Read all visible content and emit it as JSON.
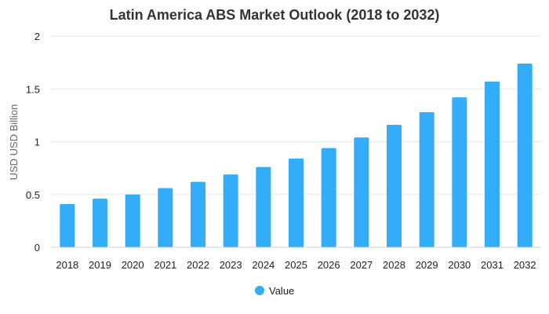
{
  "chart_data": {
    "type": "bar",
    "title": "Latin America ABS Market Outlook (2018 to 2032)",
    "xlabel": "",
    "ylabel": "USD USD Billion",
    "ylim": [
      0,
      2
    ],
    "yticks": [
      0,
      0.5,
      1,
      1.5,
      2
    ],
    "ytick_labels": [
      "0",
      "0.5",
      "1",
      "1.5",
      "2"
    ],
    "categories": [
      "2018",
      "2019",
      "2020",
      "2021",
      "2022",
      "2023",
      "2024",
      "2025",
      "2026",
      "2027",
      "2028",
      "2029",
      "2030",
      "2031",
      "2032"
    ],
    "series": [
      {
        "name": "Value",
        "color": "#33adf8",
        "values": [
          0.41,
          0.46,
          0.5,
          0.56,
          0.62,
          0.69,
          0.76,
          0.84,
          0.94,
          1.04,
          1.16,
          1.28,
          1.42,
          1.57,
          1.74
        ]
      }
    ],
    "grid": true,
    "legend_position": "bottom-center"
  }
}
